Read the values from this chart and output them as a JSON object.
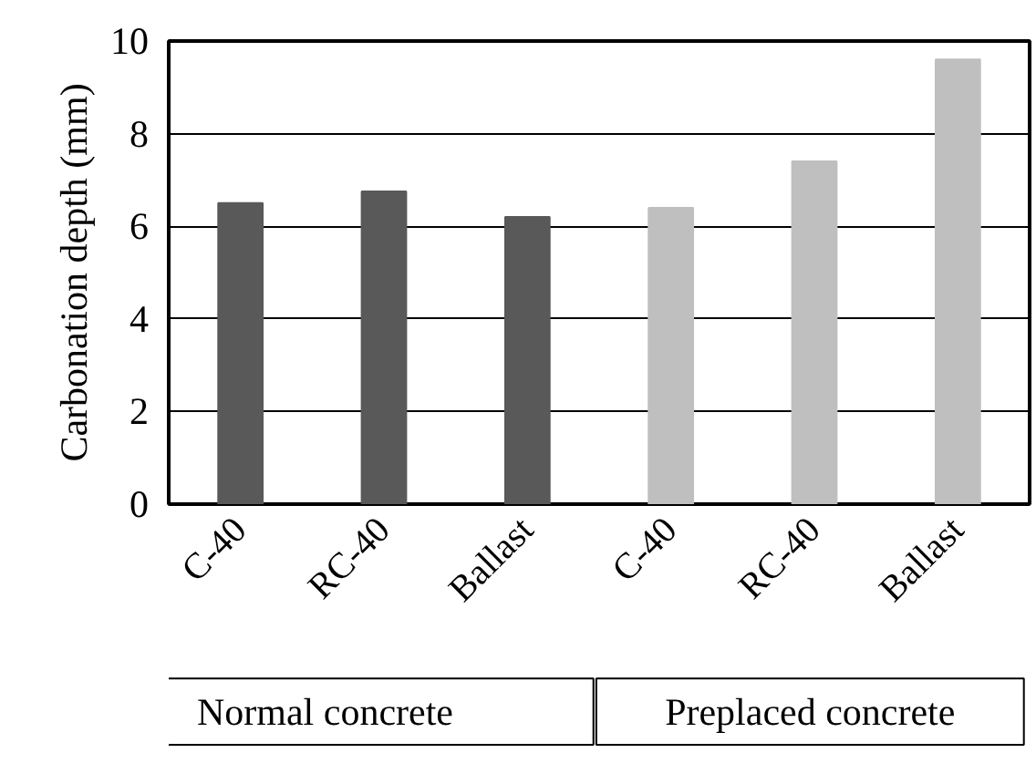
{
  "chart_data": {
    "type": "bar",
    "ylabel": "Carbonation depth (mm)",
    "categories": [
      "C-40",
      "RC-40",
      "Ballast",
      "C-40",
      "RC-40",
      "Ballast"
    ],
    "values": [
      6.5,
      6.75,
      6.2,
      6.4,
      7.4,
      9.6
    ],
    "colors": [
      "#595959",
      "#595959",
      "#595959",
      "#bfbfbf",
      "#bfbfbf",
      "#bfbfbf"
    ],
    "ylim": [
      0,
      10
    ],
    "yticks": [
      0,
      2,
      4,
      6,
      8,
      10
    ],
    "grid": "y",
    "annotations": [
      "Normal concrete",
      "Preplaced concrete"
    ]
  }
}
